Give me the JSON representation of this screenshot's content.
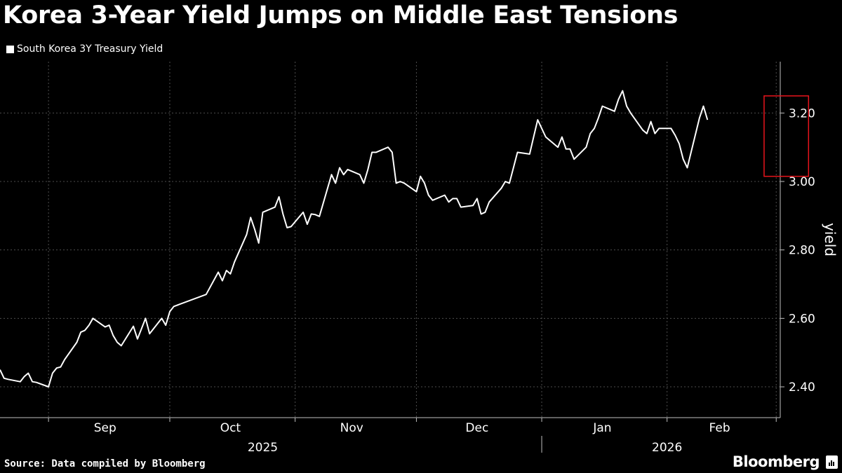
{
  "title": "Korea 3-Year Yield Jumps on Middle East Tensions",
  "source": "Source: Data compiled by Bloomberg",
  "brand": "Bloomberg",
  "chart_data": {
    "type": "line",
    "title": "Korea 3-Year Yield Jumps on Middle East Tensions",
    "ylabel": "yield",
    "ylim": [
      2.31,
      3.35
    ],
    "yticks": [
      2.4,
      2.6,
      2.8,
      3.0,
      3.2
    ],
    "ytick_labels": [
      "2.40",
      "2.60",
      "2.80",
      "3.00",
      "3.20"
    ],
    "grid": true,
    "legend": "top-left",
    "xlim": [
      "2025-08-20",
      "2026-03-01"
    ],
    "month_labels": [
      {
        "label": "Sep",
        "date": "2025-09-15"
      },
      {
        "label": "Oct",
        "date": "2025-10-16"
      },
      {
        "label": "Nov",
        "date": "2025-11-15"
      },
      {
        "label": "Dec",
        "date": "2025-12-16"
      },
      {
        "label": "Jan",
        "date": "2026-01-16"
      },
      {
        "label": "Feb",
        "date": "2026-02-14"
      }
    ],
    "month_boundaries": [
      "2025-09-01",
      "2025-10-01",
      "2025-11-01",
      "2025-12-01",
      "2026-01-01",
      "2026-02-01",
      "2026-02-28"
    ],
    "year_labels": [
      {
        "label": "2025",
        "date": "2025-10-24"
      },
      {
        "label": "2026",
        "date": "2026-02-01"
      }
    ],
    "year_divider": "2026-01-01",
    "highlight": {
      "x_start": "2026-02-25",
      "x_end": "2026-03-08",
      "y_low": 3.015,
      "y_high": 3.25,
      "color": "#e8141c"
    },
    "series": [
      {
        "name": "South Korea 3Y Treasury Yield",
        "color": "#ffffff",
        "points": [
          [
            "2025-08-20",
            2.45
          ],
          [
            "2025-08-21",
            2.425
          ],
          [
            "2025-08-22",
            2.422
          ],
          [
            "2025-08-25",
            2.415
          ],
          [
            "2025-08-26",
            2.43
          ],
          [
            "2025-08-27",
            2.44
          ],
          [
            "2025-08-28",
            2.415
          ],
          [
            "2025-08-29",
            2.413
          ],
          [
            "2025-09-01",
            2.4
          ],
          [
            "2025-09-02",
            2.44
          ],
          [
            "2025-09-03",
            2.455
          ],
          [
            "2025-09-04",
            2.458
          ],
          [
            "2025-09-05",
            2.48
          ],
          [
            "2025-09-08",
            2.53
          ],
          [
            "2025-09-09",
            2.56
          ],
          [
            "2025-09-10",
            2.565
          ],
          [
            "2025-09-11",
            2.58
          ],
          [
            "2025-09-12",
            2.6
          ],
          [
            "2025-09-15",
            2.575
          ],
          [
            "2025-09-16",
            2.58
          ],
          [
            "2025-09-17",
            2.55
          ],
          [
            "2025-09-18",
            2.53
          ],
          [
            "2025-09-19",
            2.52
          ],
          [
            "2025-09-22",
            2.577
          ],
          [
            "2025-09-23",
            2.54
          ],
          [
            "2025-09-24",
            2.57
          ],
          [
            "2025-09-25",
            2.6
          ],
          [
            "2025-09-26",
            2.555
          ],
          [
            "2025-09-29",
            2.6
          ],
          [
            "2025-09-30",
            2.58
          ],
          [
            "2025-10-01",
            2.62
          ],
          [
            "2025-10-02",
            2.635
          ],
          [
            "2025-10-10",
            2.67
          ],
          [
            "2025-10-13",
            2.735
          ],
          [
            "2025-10-14",
            2.71
          ],
          [
            "2025-10-15",
            2.74
          ],
          [
            "2025-10-16",
            2.73
          ],
          [
            "2025-10-17",
            2.765
          ],
          [
            "2025-10-20",
            2.845
          ],
          [
            "2025-10-21",
            2.895
          ],
          [
            "2025-10-22",
            2.86
          ],
          [
            "2025-10-23",
            2.82
          ],
          [
            "2025-10-24",
            2.91
          ],
          [
            "2025-10-27",
            2.925
          ],
          [
            "2025-10-28",
            2.955
          ],
          [
            "2025-10-29",
            2.905
          ],
          [
            "2025-10-30",
            2.865
          ],
          [
            "2025-10-31",
            2.868
          ],
          [
            "2025-11-03",
            2.91
          ],
          [
            "2025-11-04",
            2.875
          ],
          [
            "2025-11-05",
            2.905
          ],
          [
            "2025-11-06",
            2.903
          ],
          [
            "2025-11-07",
            2.898
          ],
          [
            "2025-11-10",
            3.02
          ],
          [
            "2025-11-11",
            2.995
          ],
          [
            "2025-11-12",
            3.04
          ],
          [
            "2025-11-13",
            3.02
          ],
          [
            "2025-11-14",
            3.035
          ],
          [
            "2025-11-17",
            3.02
          ],
          [
            "2025-11-18",
            2.995
          ],
          [
            "2025-11-19",
            3.035
          ],
          [
            "2025-11-20",
            3.085
          ],
          [
            "2025-11-21",
            3.085
          ],
          [
            "2025-11-24",
            3.1
          ],
          [
            "2025-11-25",
            3.085
          ],
          [
            "2025-11-26",
            2.995
          ],
          [
            "2025-11-27",
            3.0
          ],
          [
            "2025-11-28",
            2.995
          ],
          [
            "2025-12-01",
            2.97
          ],
          [
            "2025-12-02",
            3.015
          ],
          [
            "2025-12-03",
            2.995
          ],
          [
            "2025-12-04",
            2.96
          ],
          [
            "2025-12-05",
            2.945
          ],
          [
            "2025-12-08",
            2.96
          ],
          [
            "2025-12-09",
            2.94
          ],
          [
            "2025-12-10",
            2.95
          ],
          [
            "2025-12-11",
            2.95
          ],
          [
            "2025-12-12",
            2.925
          ],
          [
            "2025-12-15",
            2.93
          ],
          [
            "2025-12-16",
            2.95
          ],
          [
            "2025-12-17",
            2.905
          ],
          [
            "2025-12-18",
            2.91
          ],
          [
            "2025-12-19",
            2.94
          ],
          [
            "2025-12-22",
            2.98
          ],
          [
            "2025-12-23",
            3.0
          ],
          [
            "2025-12-24",
            2.995
          ],
          [
            "2025-12-26",
            3.085
          ],
          [
            "2025-12-29",
            3.08
          ],
          [
            "2025-12-30",
            3.13
          ],
          [
            "2025-12-31",
            3.18
          ],
          [
            "2026-01-02",
            3.13
          ],
          [
            "2026-01-05",
            3.1
          ],
          [
            "2026-01-06",
            3.13
          ],
          [
            "2026-01-07",
            3.095
          ],
          [
            "2026-01-08",
            3.095
          ],
          [
            "2026-01-09",
            3.065
          ],
          [
            "2026-01-12",
            3.1
          ],
          [
            "2026-01-13",
            3.14
          ],
          [
            "2026-01-14",
            3.155
          ],
          [
            "2026-01-15",
            3.185
          ],
          [
            "2026-01-16",
            3.22
          ],
          [
            "2026-01-19",
            3.205
          ],
          [
            "2026-01-20",
            3.24
          ],
          [
            "2026-01-21",
            3.265
          ],
          [
            "2026-01-22",
            3.22
          ],
          [
            "2026-01-23",
            3.2
          ],
          [
            "2026-01-26",
            3.15
          ],
          [
            "2026-01-27",
            3.14
          ],
          [
            "2026-01-28",
            3.175
          ],
          [
            "2026-01-29",
            3.14
          ],
          [
            "2026-01-30",
            3.155
          ],
          [
            "2026-02-02",
            3.155
          ],
          [
            "2026-02-03",
            3.135
          ],
          [
            "2026-02-04",
            3.11
          ],
          [
            "2026-02-05",
            3.065
          ],
          [
            "2026-02-06",
            3.04
          ],
          [
            "2026-02-09",
            3.185
          ],
          [
            "2026-02-10",
            3.22
          ],
          [
            "2026-02-11",
            3.18
          ]
        ]
      }
    ]
  }
}
